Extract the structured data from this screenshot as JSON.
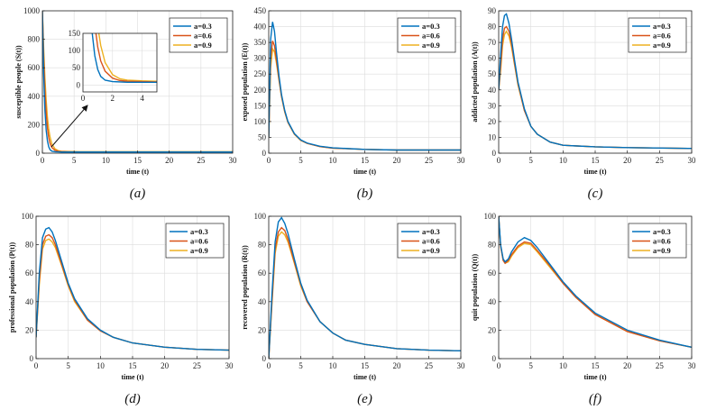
{
  "chart_data": [
    {
      "id": "a",
      "type": "line",
      "caption": "(a)",
      "xlabel": "time (t)",
      "ylabel": "susceptible people (S(t))",
      "xlim": [
        0,
        30
      ],
      "ylim": [
        0,
        1000
      ],
      "xticks": [
        0,
        5,
        10,
        15,
        20,
        25,
        30
      ],
      "yticks": [
        0,
        200,
        400,
        600,
        800,
        1000
      ],
      "x": [
        0,
        0.2,
        0.4,
        0.6,
        0.8,
        1.0,
        1.2,
        1.5,
        2.0,
        2.5,
        3,
        4,
        5,
        6,
        8,
        10,
        15,
        20,
        30
      ],
      "series": [
        {
          "name": "a=0.3",
          "color": "#0072BD",
          "values": [
            1000,
            560,
            300,
            160,
            85,
            45,
            25,
            14,
            10,
            9,
            8,
            8,
            8,
            8,
            8,
            8,
            8,
            8,
            8
          ]
        },
        {
          "name": "a=0.6",
          "color": "#D95319",
          "values": [
            1000,
            680,
            440,
            280,
            175,
            110,
            70,
            40,
            20,
            13,
            11,
            10,
            9,
            9,
            9,
            9,
            9,
            9,
            9
          ]
        },
        {
          "name": "a=0.9",
          "color": "#EDB120",
          "values": [
            1000,
            740,
            530,
            370,
            250,
            170,
            115,
            65,
            30,
            18,
            14,
            12,
            11,
            10,
            10,
            10,
            10,
            10,
            10
          ]
        }
      ],
      "inset": {
        "xlim": [
          0,
          5
        ],
        "ylim": [
          -20,
          150
        ],
        "xticks": [
          0,
          2,
          4
        ],
        "yticks": [
          0,
          50,
          100,
          150
        ]
      }
    },
    {
      "id": "b",
      "type": "line",
      "caption": "(b)",
      "xlabel": "time (t)",
      "ylabel": "exposed population (E(t))",
      "xlim": [
        0,
        30
      ],
      "ylim": [
        0,
        450
      ],
      "xticks": [
        0,
        5,
        10,
        15,
        20,
        25,
        30
      ],
      "yticks": [
        0,
        50,
        100,
        150,
        200,
        250,
        300,
        350,
        400,
        450
      ],
      "x": [
        0,
        0.3,
        0.6,
        0.9,
        1.2,
        1.6,
        2,
        2.5,
        3,
        4,
        5,
        6,
        8,
        10,
        15,
        20,
        30
      ],
      "series": [
        {
          "name": "a=0.3",
          "color": "#0072BD",
          "values": [
            50,
            360,
            415,
            385,
            320,
            245,
            185,
            135,
            100,
            62,
            42,
            32,
            22,
            17,
            12,
            10,
            10
          ]
        },
        {
          "name": "a=0.6",
          "color": "#D95319",
          "values": [
            50,
            300,
            355,
            340,
            295,
            235,
            180,
            132,
            98,
            61,
            41,
            31,
            21,
            16,
            12,
            10,
            10
          ]
        },
        {
          "name": "a=0.9",
          "color": "#EDB120",
          "values": [
            50,
            270,
            330,
            320,
            285,
            230,
            178,
            130,
            97,
            60,
            40,
            31,
            21,
            16,
            12,
            10,
            10
          ]
        }
      ]
    },
    {
      "id": "c",
      "type": "line",
      "caption": "(c)",
      "xlabel": "time (t)",
      "ylabel": "addicted population (A(t))",
      "xlim": [
        0,
        30
      ],
      "ylim": [
        0,
        90
      ],
      "xticks": [
        0,
        5,
        10,
        15,
        20,
        25,
        30
      ],
      "yticks": [
        0,
        10,
        20,
        30,
        40,
        50,
        60,
        70,
        80,
        90
      ],
      "x": [
        0,
        0.3,
        0.6,
        0.9,
        1.2,
        1.6,
        2,
        2.5,
        3,
        4,
        5,
        6,
        8,
        10,
        15,
        20,
        30
      ],
      "series": [
        {
          "name": "a=0.3",
          "color": "#0072BD",
          "values": [
            40,
            62,
            80,
            87,
            88,
            82,
            72,
            58,
            45,
            28,
            17,
            12,
            7,
            5,
            4,
            3.5,
            3
          ]
        },
        {
          "name": "a=0.6",
          "color": "#D95319",
          "values": [
            40,
            55,
            72,
            79,
            80,
            77,
            69,
            56,
            44,
            27,
            17,
            12,
            7,
            5,
            4,
            3.5,
            3
          ]
        },
        {
          "name": "a=0.9",
          "color": "#EDB120",
          "values": [
            40,
            52,
            68,
            75,
            77,
            74,
            67,
            55,
            43,
            27,
            17,
            12,
            7,
            5,
            4,
            3.5,
            3
          ]
        }
      ]
    },
    {
      "id": "d",
      "type": "line",
      "caption": "(d)",
      "xlabel": "time (t)",
      "ylabel": "professional population (P(t))",
      "xlim": [
        0,
        30
      ],
      "ylim": [
        0,
        100
      ],
      "xticks": [
        0,
        5,
        10,
        15,
        20,
        25,
        30
      ],
      "yticks": [
        0,
        20,
        40,
        60,
        80,
        100
      ],
      "x": [
        0,
        0.5,
        1,
        1.5,
        2,
        2.5,
        3,
        4,
        5,
        6,
        8,
        10,
        12,
        15,
        20,
        25,
        30
      ],
      "series": [
        {
          "name": "a=0.3",
          "color": "#0072BD",
          "values": [
            15,
            60,
            85,
            91,
            92,
            89,
            83,
            68,
            53,
            42,
            28,
            20,
            15,
            11,
            8,
            6.5,
            6
          ]
        },
        {
          "name": "a=0.6",
          "color": "#D95319",
          "values": [
            15,
            55,
            80,
            86,
            87,
            85,
            80,
            66,
            52,
            41,
            27,
            19.5,
            15,
            11,
            8,
            6.5,
            6
          ]
        },
        {
          "name": "a=0.9",
          "color": "#EDB120",
          "values": [
            15,
            52,
            77,
            83,
            84,
            82,
            78,
            65,
            51,
            40,
            27,
            19.5,
            15,
            11,
            8,
            6.5,
            6
          ]
        }
      ]
    },
    {
      "id": "e",
      "type": "line",
      "caption": "(e)",
      "xlabel": "time (t)",
      "ylabel": "recovered population (R(t))",
      "xlim": [
        0,
        30
      ],
      "ylim": [
        0,
        100
      ],
      "xticks": [
        0,
        5,
        10,
        15,
        20,
        25,
        30
      ],
      "yticks": [
        0,
        20,
        40,
        60,
        80,
        100
      ],
      "x": [
        0,
        0.5,
        1,
        1.5,
        2,
        2.5,
        3,
        4,
        5,
        6,
        8,
        10,
        12,
        15,
        20,
        25,
        30
      ],
      "series": [
        {
          "name": "a=0.3",
          "color": "#0072BD",
          "values": [
            0,
            45,
            82,
            96,
            99,
            95,
            88,
            70,
            53,
            41,
            26,
            18,
            13,
            10,
            7,
            6,
            5.5
          ]
        },
        {
          "name": "a=0.6",
          "color": "#D95319",
          "values": [
            0,
            40,
            77,
            89,
            92,
            90,
            84,
            68,
            52,
            40,
            26,
            18,
            13,
            10,
            7,
            6,
            5.5
          ]
        },
        {
          "name": "a=0.9",
          "color": "#EDB120",
          "values": [
            0,
            38,
            74,
            86,
            89,
            87,
            82,
            67,
            51,
            40,
            26,
            18,
            13,
            10,
            7,
            6,
            5.5
          ]
        }
      ]
    },
    {
      "id": "f",
      "type": "line",
      "caption": "(f)",
      "xlabel": "time (t)",
      "ylabel": "quit population (Q(t))",
      "xlim": [
        0,
        30
      ],
      "ylim": [
        0,
        100
      ],
      "xticks": [
        0,
        5,
        10,
        15,
        20,
        25,
        30
      ],
      "yticks": [
        0,
        20,
        40,
        60,
        80,
        100
      ],
      "x": [
        0,
        0.3,
        0.7,
        1,
        1.5,
        2,
        3,
        4,
        5,
        6,
        8,
        10,
        12,
        15,
        20,
        25,
        30
      ],
      "series": [
        {
          "name": "a=0.3",
          "color": "#0072BD",
          "values": [
            100,
            80,
            70,
            68,
            70,
            75,
            82,
            85,
            83,
            78,
            66,
            54,
            44,
            32,
            20,
            13,
            8
          ]
        },
        {
          "name": "a=0.6",
          "color": "#D95319",
          "values": [
            100,
            79,
            69,
            67,
            69,
            73,
            79,
            82,
            81,
            76,
            65,
            53,
            43,
            31,
            19,
            12.5,
            8
          ]
        },
        {
          "name": "a=0.9",
          "color": "#EDB120",
          "values": [
            100,
            79,
            69,
            67,
            68,
            72,
            78,
            81,
            80,
            75,
            64,
            53,
            43,
            31,
            19,
            12.5,
            8
          ]
        }
      ]
    }
  ]
}
